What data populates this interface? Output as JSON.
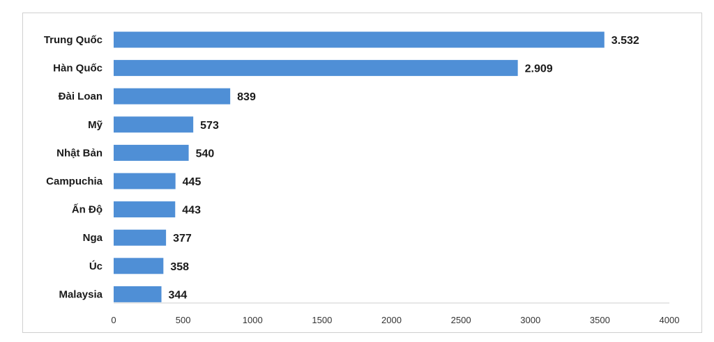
{
  "chart_data": {
    "type": "bar",
    "orientation": "horizontal",
    "categories": [
      "Trung Quốc",
      "Hàn Quốc",
      "Đài Loan",
      "Mỹ",
      "Nhật Bản",
      "Campuchia",
      "Ấn Độ",
      "Nga",
      "Úc",
      "Malaysia"
    ],
    "values": [
      3532,
      2909,
      839,
      573,
      540,
      445,
      443,
      377,
      358,
      344
    ],
    "value_labels": [
      "3.532",
      "2.909",
      "839",
      "573",
      "540",
      "445",
      "443",
      "377",
      "358",
      "344"
    ],
    "xlim": [
      0,
      4000
    ],
    "x_ticks": [
      0,
      500,
      1000,
      1500,
      2000,
      2500,
      3000,
      3500,
      4000
    ],
    "title": "",
    "xlabel": "",
    "ylabel": "",
    "grid": false,
    "bar_color": "#4f8fd6"
  }
}
